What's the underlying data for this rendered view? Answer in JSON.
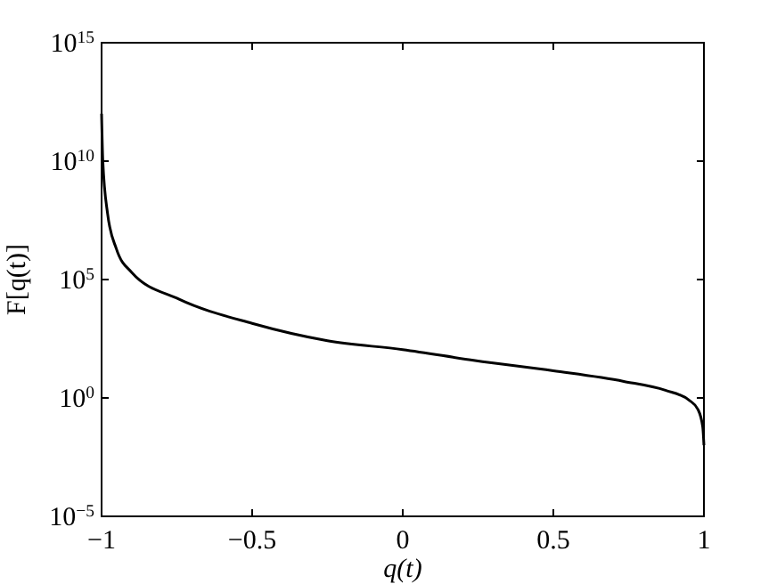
{
  "chart_data": {
    "type": "line",
    "xlabel": "q(t)",
    "ylabel": "F[q(t)]",
    "log": "y",
    "xlim": [
      -1,
      1
    ],
    "xticks": [
      -1,
      -0.5,
      0,
      0.5,
      1
    ],
    "ylim": [
      1e-05,
      1000000000000000.0
    ],
    "yticks": [
      {
        "value": 1e-05,
        "label": "10$^{−5}$"
      },
      {
        "value": 1,
        "label": "10$^{0}$"
      },
      {
        "value": 100000.0,
        "label": "10$^{5}$"
      },
      {
        "value": 10000000000.0,
        "label": "10$^{10}$"
      },
      {
        "value": 1000000000000000.0,
        "label": "10$^{15}$"
      }
    ],
    "grid": false,
    "marker": "none",
    "line_style": "solid",
    "series": [
      {
        "color": "#000000",
        "x": [
          -1,
          -0.996,
          -0.98,
          -0.951,
          -0.9,
          -0.744,
          -0.5,
          -0.25,
          0,
          0.24,
          0.5,
          0.734,
          0.872,
          0.951,
          0.98,
          0.996,
          1
        ],
        "values": [
          1000000000000.0,
          11000000000.0,
          60000000.0,
          2000000.0,
          200000.0,
          15000.0,
          1400,
          260,
          110,
          38,
          14,
          5,
          2.1,
          0.8,
          0.33,
          0.06,
          0.01
        ]
      }
    ]
  }
}
